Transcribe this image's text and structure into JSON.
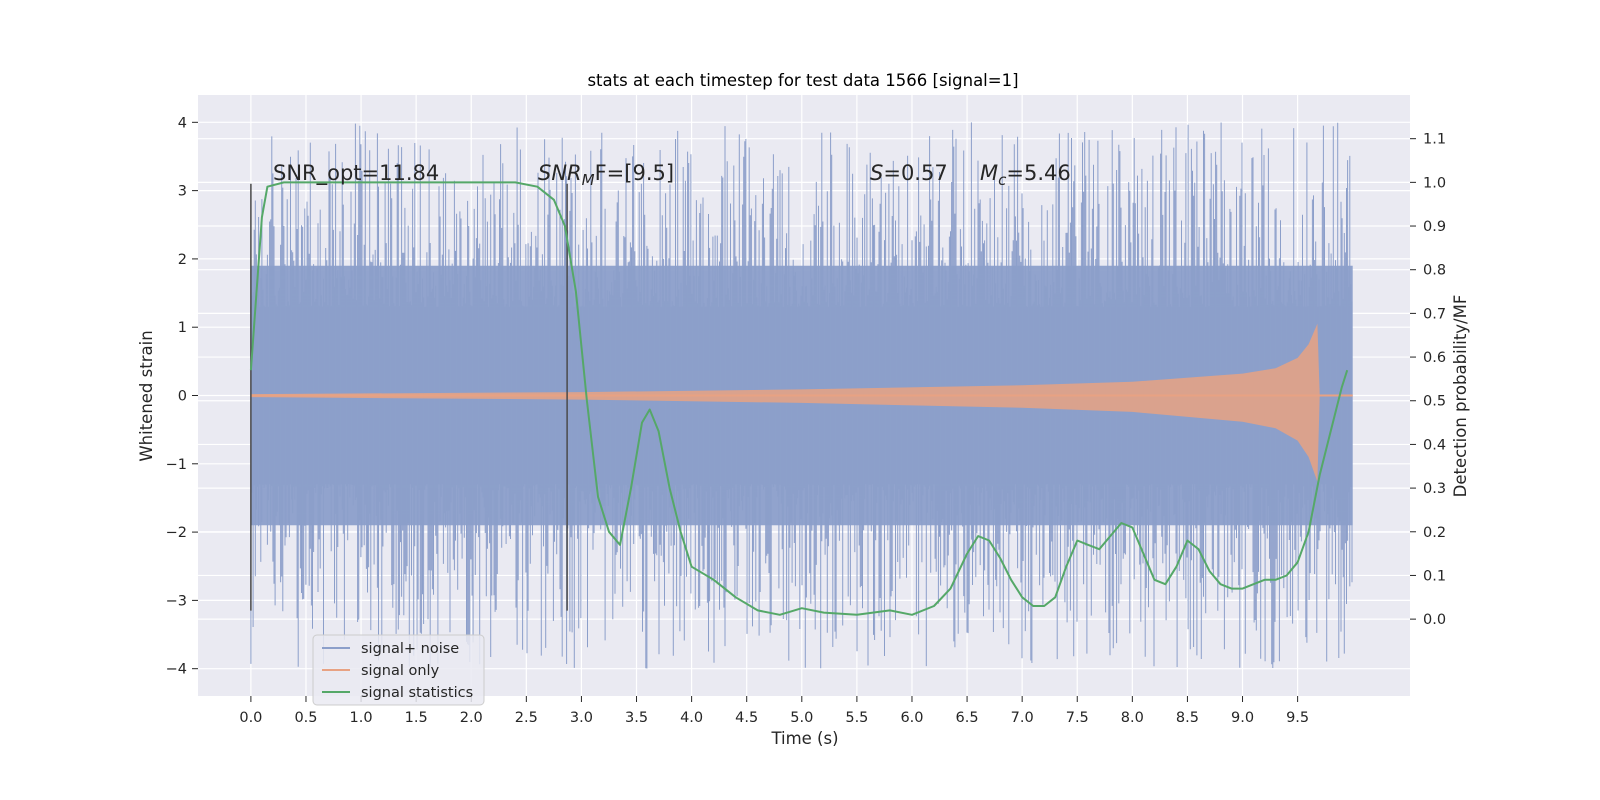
{
  "chart_data": {
    "type": "line",
    "title": "stats at each timestep for test data 1566 [signal=1]",
    "xlabel": "Time (s)",
    "ylabel": "Whitened strain",
    "y2label": "Detection probability/MF",
    "xlim": [
      -0.48,
      10.52
    ],
    "ylim": [
      -4.4,
      4.4
    ],
    "y2lim": [
      -0.176,
      1.2
    ],
    "x_ticks": [
      "0.0",
      "0.5",
      "1.0",
      "1.5",
      "2.0",
      "2.5",
      "3.0",
      "3.5",
      "4.0",
      "4.5",
      "5.0",
      "5.5",
      "6.0",
      "6.5",
      "7.0",
      "7.5",
      "8.0",
      "8.5",
      "9.0",
      "9.5"
    ],
    "y_ticks": [
      "4",
      "3",
      "2",
      "1",
      "0",
      "−1",
      "−2",
      "−3",
      "−4"
    ],
    "y2_ticks": [
      "1.1",
      "1.0",
      "0.9",
      "0.8",
      "0.7",
      "0.6",
      "0.5",
      "0.4",
      "0.3",
      "0.2",
      "0.1",
      "0.0"
    ],
    "grid": true,
    "legend_position": "lower-left",
    "annotations": {
      "snr_opt": "SNR_opt=11.84",
      "snr_mf_main": "SNR",
      "snr_mf_sub": "M",
      "snr_mf_rest": "F=[9.5]",
      "s_main": "S",
      "s_rest": "=0.57",
      "mc_main": "M",
      "mc_sub": "c",
      "mc_rest": "=5.46"
    },
    "vertical_markers": [
      0.0,
      2.87
    ],
    "series": [
      {
        "name": "signal+ noise",
        "color": "#8c9fca",
        "axis": "left",
        "style": "noise-band",
        "t_range": [
          0.0,
          10.0
        ],
        "core_band": [
          -1.9,
          1.9
        ],
        "peak_range": [
          -4.0,
          4.0
        ]
      },
      {
        "name": "signal only",
        "color": "#e8a283",
        "axis": "left",
        "style": "chirp-envelope",
        "t": [
          0.0,
          3.0,
          5.0,
          7.0,
          8.0,
          9.0,
          9.3,
          9.5,
          9.6,
          9.68,
          9.7
        ],
        "amplitude": [
          0.02,
          0.05,
          0.09,
          0.15,
          0.2,
          0.32,
          0.4,
          0.55,
          0.75,
          1.05,
          0.0
        ]
      },
      {
        "name": "signal statistics",
        "color": "#55a868",
        "axis": "right",
        "x": [
          0.0,
          0.1,
          0.15,
          0.3,
          0.6,
          1.0,
          1.5,
          2.0,
          2.4,
          2.6,
          2.75,
          2.85,
          2.95,
          3.05,
          3.15,
          3.25,
          3.35,
          3.45,
          3.55,
          3.62,
          3.7,
          3.8,
          3.9,
          4.0,
          4.2,
          4.4,
          4.6,
          4.8,
          5.0,
          5.2,
          5.5,
          5.8,
          6.0,
          6.2,
          6.35,
          6.5,
          6.6,
          6.7,
          6.8,
          6.9,
          7.0,
          7.1,
          7.2,
          7.3,
          7.4,
          7.5,
          7.6,
          7.7,
          7.8,
          7.9,
          8.0,
          8.1,
          8.2,
          8.3,
          8.4,
          8.5,
          8.6,
          8.7,
          8.8,
          8.9,
          9.0,
          9.1,
          9.2,
          9.3,
          9.4,
          9.5,
          9.6,
          9.7,
          9.8,
          9.9,
          9.95
        ],
        "values": [
          0.57,
          0.92,
          0.99,
          1.0,
          1.0,
          1.0,
          1.0,
          1.0,
          1.0,
          0.99,
          0.96,
          0.9,
          0.75,
          0.5,
          0.28,
          0.2,
          0.17,
          0.3,
          0.45,
          0.48,
          0.43,
          0.3,
          0.2,
          0.12,
          0.09,
          0.05,
          0.02,
          0.01,
          0.025,
          0.015,
          0.01,
          0.02,
          0.01,
          0.03,
          0.07,
          0.15,
          0.19,
          0.18,
          0.14,
          0.09,
          0.05,
          0.03,
          0.03,
          0.05,
          0.12,
          0.18,
          0.17,
          0.16,
          0.19,
          0.22,
          0.21,
          0.15,
          0.09,
          0.08,
          0.12,
          0.18,
          0.16,
          0.11,
          0.08,
          0.07,
          0.07,
          0.08,
          0.09,
          0.09,
          0.1,
          0.13,
          0.2,
          0.33,
          0.43,
          0.53,
          0.57
        ]
      }
    ]
  }
}
